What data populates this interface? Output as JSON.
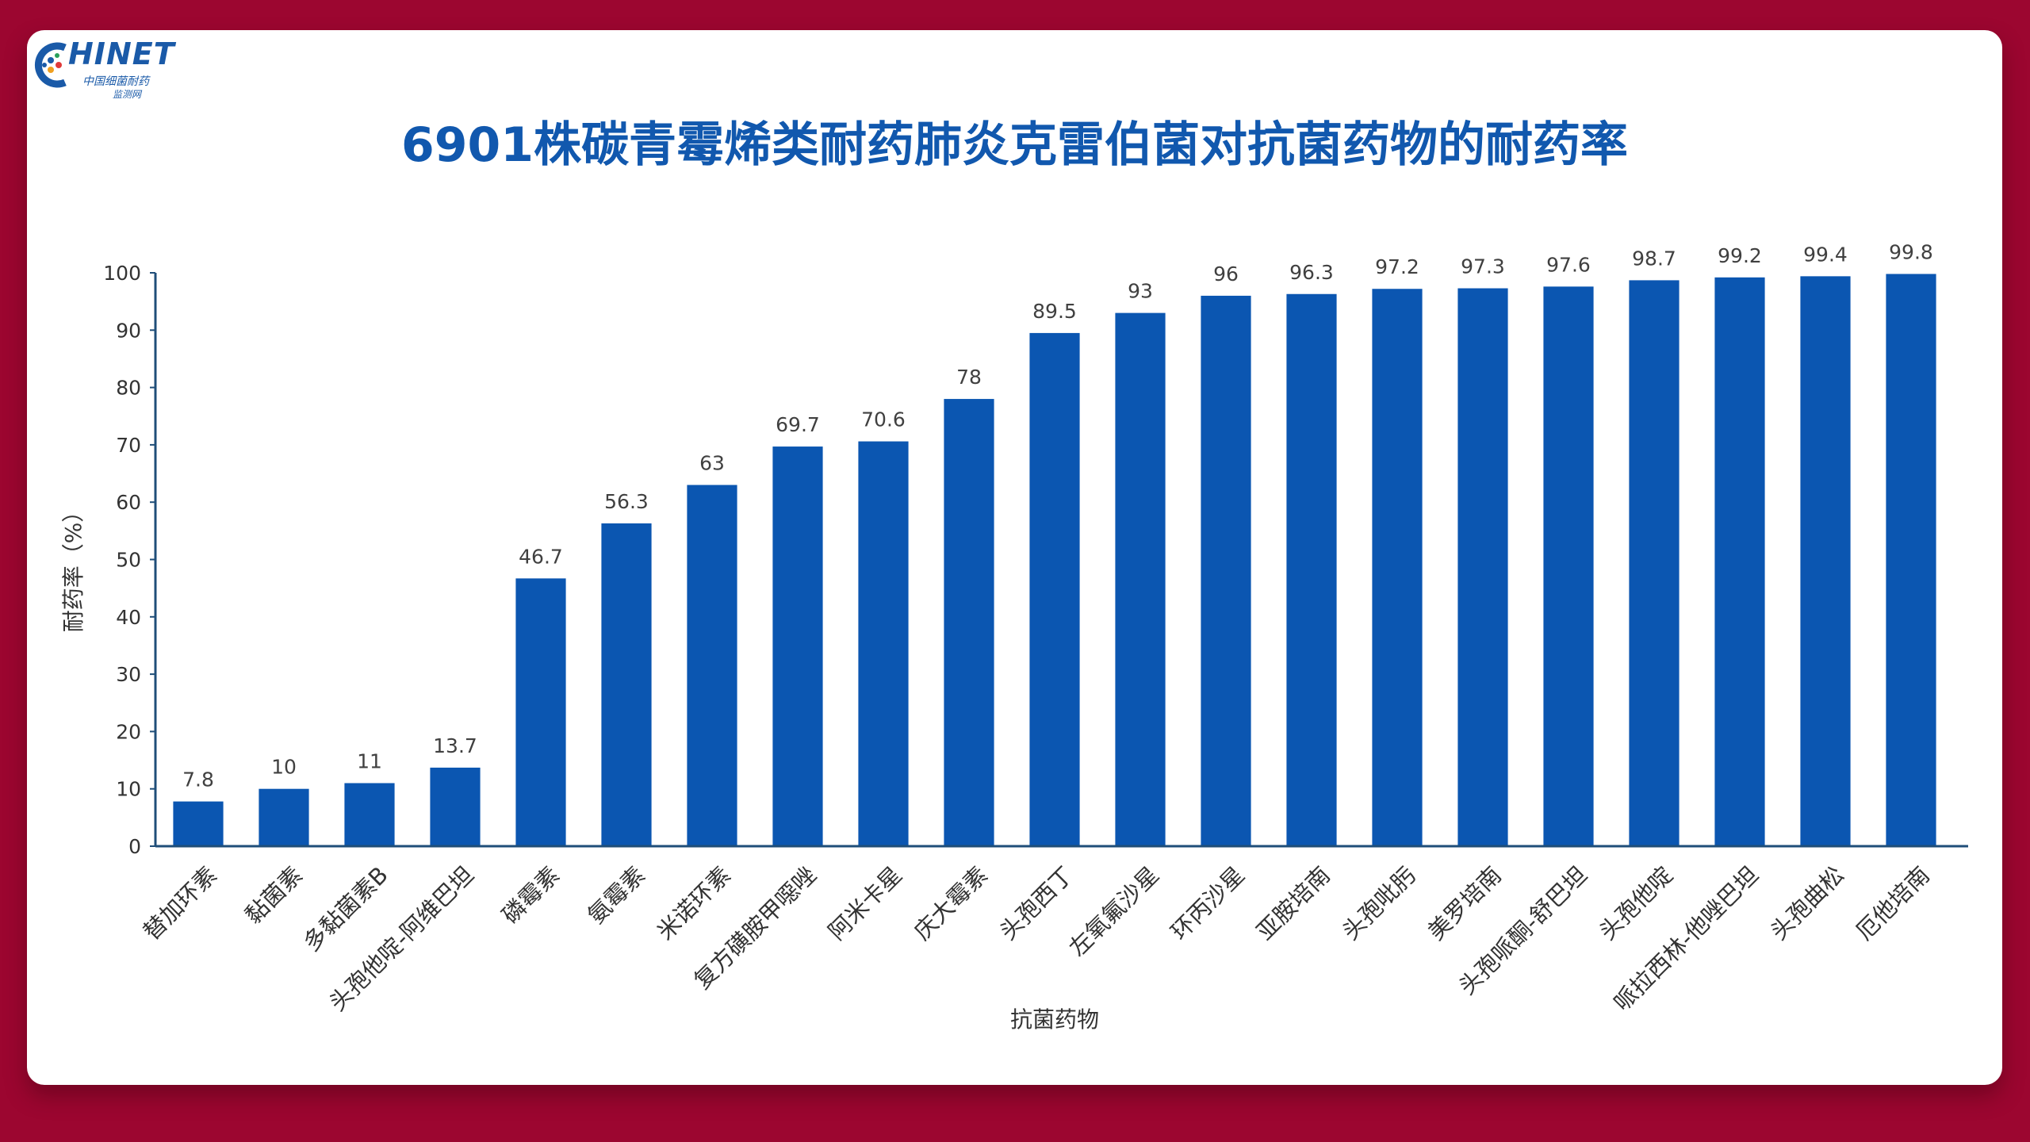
{
  "logo": {
    "text": "HINET",
    "sub1": "中国细菌耐药",
    "sub2": "监测网"
  },
  "colors": {
    "background": "#9c0630",
    "bar": "#0b56b1",
    "axis": "#1f4e79",
    "title": "#1158ae"
  },
  "chart_data": {
    "type": "bar",
    "title": "6901株碳青霉烯类耐药肺炎克雷伯菌对抗菌药物的耐药率",
    "xlabel": "抗菌药物",
    "ylabel": "耐药率（%）",
    "ylim": [
      0,
      100
    ],
    "yticks": [
      0,
      10,
      20,
      30,
      40,
      50,
      60,
      70,
      80,
      90,
      100
    ],
    "grid": false,
    "categories": [
      "替加环素",
      "黏菌素",
      "多黏菌素B",
      "头孢他啶-阿维巴坦",
      "磷霉素",
      "氨霉素",
      "米诺环素",
      "复方磺胺甲噁唑",
      "阿米卡星",
      "庆大霉素",
      "头孢西丁",
      "左氧氟沙星",
      "环丙沙星",
      "亚胺培南",
      "头孢吡肟",
      "美罗培南",
      "头孢哌酮-舒巴坦",
      "头孢他啶",
      "哌拉西林-他唑巴坦",
      "头孢曲松",
      "厄他培南"
    ],
    "values": [
      7.8,
      10,
      11,
      13.7,
      46.7,
      56.3,
      63,
      69.7,
      70.6,
      78,
      89.5,
      93,
      96,
      96.3,
      97.2,
      97.3,
      97.6,
      98.7,
      99.2,
      99.4,
      99.8
    ]
  }
}
